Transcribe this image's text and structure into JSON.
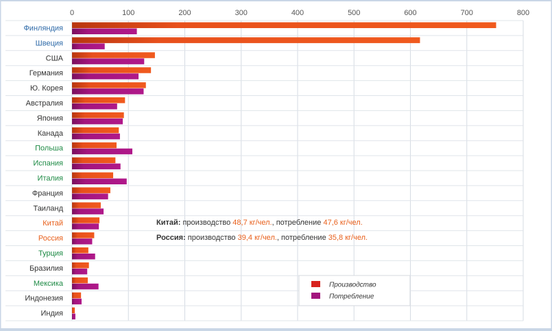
{
  "chart_data": {
    "type": "bar",
    "orientation": "horizontal",
    "categories": [
      "Финляндия",
      "Швеция",
      "США",
      "Германия",
      "Ю. Корея",
      "Австралия",
      "Япония",
      "Канада",
      "Польша",
      "Испания",
      "Италия",
      "Франция",
      "Таиланд",
      "Китай",
      "Россия",
      "Турция",
      "Бразилия",
      "Мексика",
      "Индонезия",
      "Индия"
    ],
    "category_colors": [
      "#2e6aa8",
      "#2e6aa8",
      "#333333",
      "#333333",
      "#333333",
      "#333333",
      "#333333",
      "#333333",
      "#1e8a45",
      "#1e8a45",
      "#1e8a45",
      "#333333",
      "#333333",
      "#e8601c",
      "#e8601c",
      "#1e8a45",
      "#333333",
      "#1e8a45",
      "#333333",
      "#333333"
    ],
    "series": [
      {
        "name": "Производство",
        "color": "#e8501c",
        "values": [
          752,
          617,
          147,
          140,
          131,
          94,
          92,
          83,
          79,
          77,
          73,
          68,
          51,
          48.7,
          39.4,
          29,
          30,
          28,
          16,
          5
        ]
      },
      {
        "name": "Потребление",
        "color": "#a3157e",
        "values": [
          115,
          58,
          128,
          118,
          127,
          80,
          90,
          85,
          107,
          86,
          97,
          64,
          56,
          47.6,
          35.8,
          41,
          27,
          47,
          17,
          6
        ]
      }
    ],
    "xlim": [
      0,
      800
    ],
    "xticks": [
      0,
      100,
      200,
      300,
      400,
      500,
      600,
      700,
      800
    ],
    "grid": true,
    "legend_position": "bottom-right",
    "legend_swatch_colors": [
      "#d8231e",
      "#a3157e"
    ],
    "annotations": [
      {
        "label": "Китай:",
        "prefix": "производство",
        "prod": "48,7 кг/чел.",
        "mid": "потребление",
        "cons": "47,6 кг/чел."
      },
      {
        "label": "Россия:",
        "prefix": "производство",
        "prod": "39,4 кг/чел.",
        "mid": "потребление",
        "cons": "35,8 кг/чел."
      }
    ]
  }
}
